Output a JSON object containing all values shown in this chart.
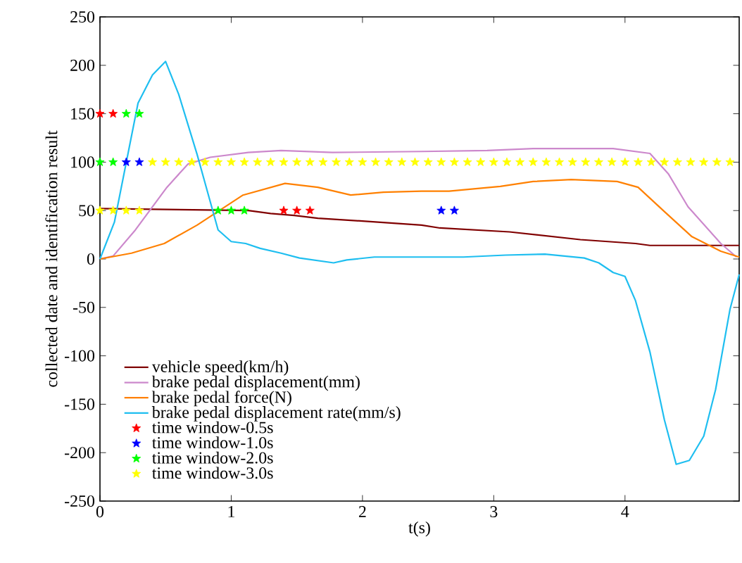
{
  "chart_data": {
    "type": "line",
    "xlabel": "t(s)",
    "ylabel": "collected date and identification result",
    "xlim": [
      0,
      4.87
    ],
    "ylim": [
      -250,
      250
    ],
    "xticks": [
      0,
      1,
      2,
      3,
      4
    ],
    "yticks": [
      -250,
      -200,
      -150,
      -100,
      -50,
      0,
      50,
      100,
      150,
      200,
      250
    ],
    "legend": "bottom left",
    "grid": false,
    "series": [
      {
        "name": "vehicle speed(km/h)",
        "marker": "none",
        "color": "#800000",
        "x": [
          0,
          1.13,
          1.3,
          1.48,
          1.66,
          2.02,
          2.45,
          2.59,
          3.12,
          3.66,
          4.08,
          4.19,
          4.87
        ],
        "values": [
          52,
          50,
          47,
          45,
          42,
          39,
          35,
          32,
          28,
          20,
          16,
          14,
          14
        ]
      },
      {
        "name": "brake pedal displacement(mm)",
        "marker": "none",
        "color": "#cc88cc",
        "x": [
          0,
          0.1,
          0.27,
          0.51,
          0.67,
          0.84,
          1.13,
          1.38,
          1.77,
          2.45,
          2.95,
          3.3,
          3.91,
          4.19,
          4.33,
          4.48,
          4.73,
          4.85
        ],
        "values": [
          0,
          3,
          30,
          74,
          98,
          105,
          110,
          112,
          110,
          111,
          112,
          114,
          114,
          109,
          88,
          54,
          16,
          2
        ]
      },
      {
        "name": "brake pedal force(N)",
        "marker": "none",
        "color": "#ff8000",
        "x": [
          0,
          0.24,
          0.49,
          0.74,
          1.09,
          1.41,
          1.66,
          1.91,
          2.16,
          2.45,
          2.66,
          3.05,
          3.3,
          3.59,
          3.94,
          4.1,
          4.3,
          4.51,
          4.73,
          4.87
        ],
        "values": [
          0,
          6,
          16,
          35,
          66,
          78,
          74,
          66,
          69,
          70,
          70,
          75,
          80,
          82,
          80,
          74,
          49,
          23,
          8,
          2
        ]
      },
      {
        "name": "brake pedal displacement rate(mm/s)",
        "marker": "none",
        "color": "#1ebef0",
        "x": [
          0,
          0.11,
          0.29,
          0.4,
          0.5,
          0.6,
          0.74,
          0.9,
          1.0,
          1.11,
          1.22,
          1.38,
          1.52,
          1.78,
          1.88,
          2.09,
          2.45,
          2.77,
          3.09,
          3.39,
          3.69,
          3.8,
          3.91,
          4.0,
          4.08,
          4.19,
          4.3,
          4.39,
          4.49,
          4.6,
          4.69,
          4.8,
          4.87
        ],
        "values": [
          0,
          38,
          161,
          190,
          204,
          170,
          108,
          30,
          18,
          16,
          11,
          6,
          1,
          -4,
          -1,
          2,
          2,
          2,
          4,
          5,
          1,
          -4,
          -14,
          -18,
          -43,
          -96,
          -166,
          -212,
          -208,
          -183,
          -135,
          -52,
          -16
        ]
      },
      {
        "name": "time window-0.5s",
        "type": "scatter",
        "marker": "star",
        "color": "#ff0000",
        "x": [
          0,
          0.1,
          1.4,
          1.5,
          1.6
        ],
        "values": [
          150,
          150,
          50,
          50,
          50
        ]
      },
      {
        "name": "time window-1.0s",
        "type": "scatter",
        "marker": "star",
        "color": "#0000ff",
        "x": [
          0.2,
          0.3,
          2.6,
          2.7
        ],
        "values": [
          100,
          100,
          50,
          50
        ]
      },
      {
        "name": "time window-2.0s",
        "type": "scatter",
        "marker": "star",
        "color": "#00ff00",
        "x": [
          0,
          0.1,
          0.2,
          0.3,
          0.9,
          1.0,
          1.1
        ],
        "values": [
          100,
          100,
          150,
          150,
          50,
          50,
          50
        ]
      },
      {
        "name": "time window-3.0s",
        "type": "scatter",
        "marker": "star",
        "color": "#ffff00",
        "x": [
          0,
          0.1,
          0.2,
          0.3,
          0.4,
          0.5,
          0.6,
          0.7,
          0.8,
          0.9,
          1.0,
          1.1,
          1.2,
          1.3,
          1.4,
          1.5,
          1.6,
          1.7,
          1.8,
          1.9,
          2.0,
          2.1,
          2.2,
          2.3,
          2.4,
          2.5,
          2.6,
          2.7,
          2.8,
          2.9,
          3.0,
          3.1,
          3.2,
          3.3,
          3.4,
          3.5,
          3.6,
          3.7,
          3.8,
          3.9,
          4.0,
          4.1,
          4.2,
          4.3,
          4.4,
          4.5,
          4.6,
          4.7,
          4.8
        ],
        "values": [
          50,
          50,
          50,
          50,
          100,
          100,
          100,
          100,
          100,
          100,
          100,
          100,
          100,
          100,
          100,
          100,
          100,
          100,
          100,
          100,
          100,
          100,
          100,
          100,
          100,
          100,
          100,
          100,
          100,
          100,
          100,
          100,
          100,
          100,
          100,
          100,
          100,
          100,
          100,
          100,
          100,
          100,
          100,
          100,
          100,
          100,
          100,
          100,
          100
        ]
      }
    ]
  }
}
